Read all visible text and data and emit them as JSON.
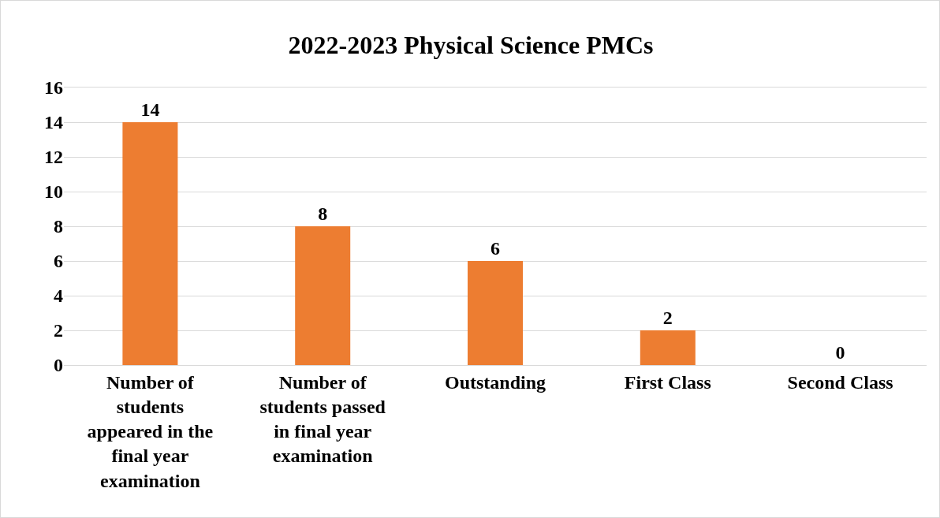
{
  "chart_data": {
    "type": "bar",
    "title": "2022-2023 Physical Science PMCs",
    "categories": [
      "Number of students appeared in the final year examination",
      "Number of students passed in final year examination",
      "Outstanding",
      "First Class",
      "Second Class"
    ],
    "values": [
      14,
      8,
      6,
      2,
      0
    ],
    "color": "#ed7d31",
    "ylim": [
      0,
      16
    ],
    "yticks": [
      0,
      2,
      4,
      6,
      8,
      10,
      12,
      14,
      16
    ],
    "grid": "y",
    "data_labels": true
  }
}
